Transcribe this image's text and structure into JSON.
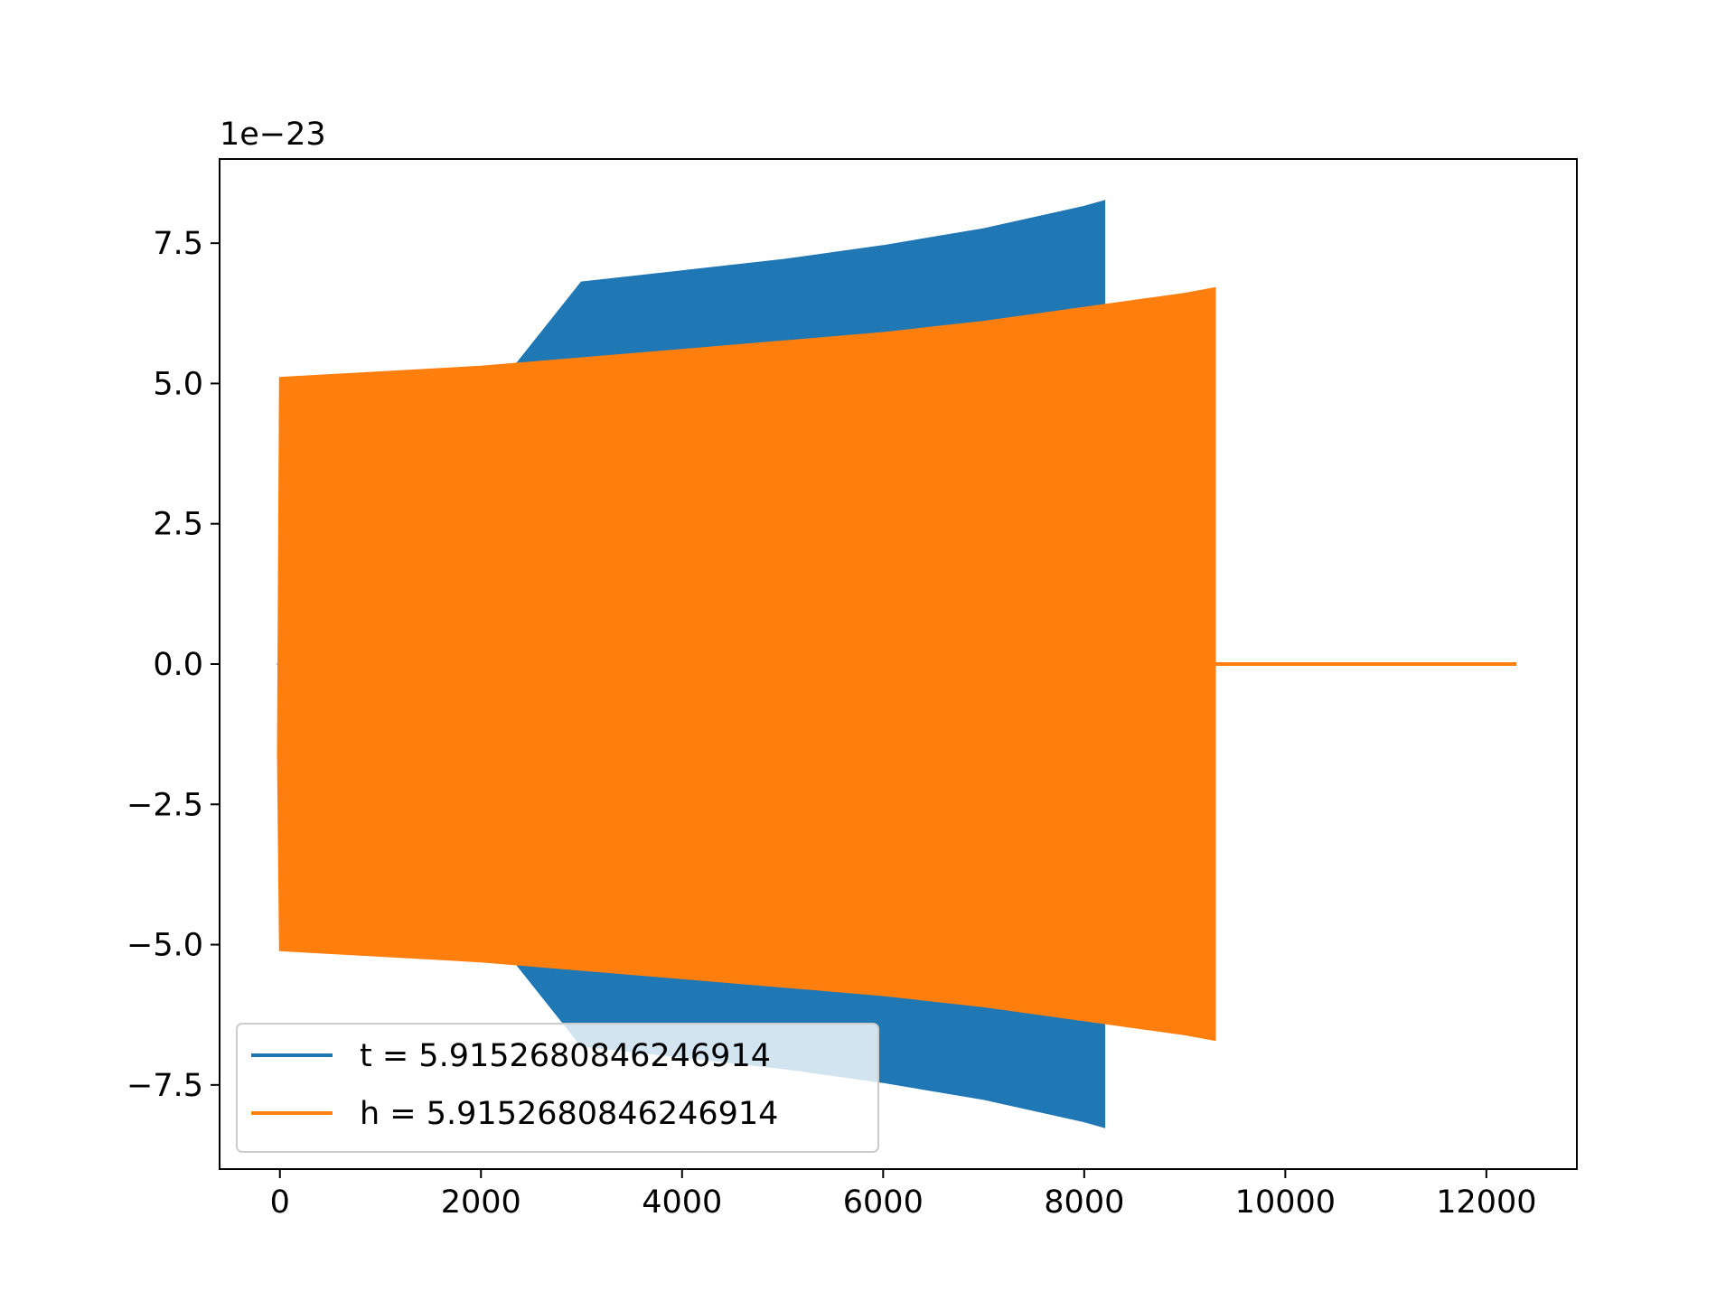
{
  "chart_data": {
    "type": "line",
    "title": "",
    "xlabel": "",
    "ylabel": "",
    "offset_text": "1e−23",
    "xlim": [
      -600,
      12900
    ],
    "ylim": [
      -9.0,
      9.0
    ],
    "x_ticks": [
      0,
      2000,
      4000,
      6000,
      8000,
      10000,
      12000
    ],
    "x_tick_labels": [
      "0",
      "2000",
      "4000",
      "6000",
      "8000",
      "10000",
      "12000"
    ],
    "y_ticks": [
      -7.5,
      -5.0,
      -2.5,
      0.0,
      2.5,
      5.0,
      7.5
    ],
    "y_tick_labels": [
      "−7.5",
      "−5.0",
      "−2.5",
      "0.0",
      "2.5",
      "5.0",
      "7.5"
    ],
    "grid": false,
    "legend_position": "lower-left",
    "series": [
      {
        "name": "t = 5.9152680846246914",
        "color": "#1f77b4",
        "style": "oscillation-envelope",
        "x": [
          -20,
          3000,
          4000,
          5000,
          6000,
          7000,
          8000,
          8200
        ],
        "upper": [
          0.0,
          6.8,
          7.0,
          7.2,
          7.45,
          7.75,
          8.15,
          8.25
        ],
        "lower": [
          0.0,
          -6.8,
          -7.0,
          -7.2,
          -7.45,
          -7.75,
          -8.15,
          -8.25
        ],
        "flat_segments": [
          [
            -20,
            3000
          ]
        ]
      },
      {
        "name": "h = 5.9152680846246914",
        "color": "#ff7f0e",
        "style": "oscillation-envelope",
        "x": [
          -20,
          0,
          1000,
          2000,
          3000,
          4000,
          5000,
          6000,
          7000,
          8000,
          9000,
          9300
        ],
        "upper": [
          -1.6,
          5.1,
          5.2,
          5.3,
          5.45,
          5.6,
          5.75,
          5.9,
          6.1,
          6.35,
          6.6,
          6.7
        ],
        "lower": [
          -1.6,
          -5.1,
          -5.2,
          -5.3,
          -5.45,
          -5.6,
          -5.75,
          -5.9,
          -6.1,
          -6.35,
          -6.6,
          -6.7
        ],
        "flat_segments": [
          [
            9300,
            12300
          ]
        ]
      }
    ]
  }
}
